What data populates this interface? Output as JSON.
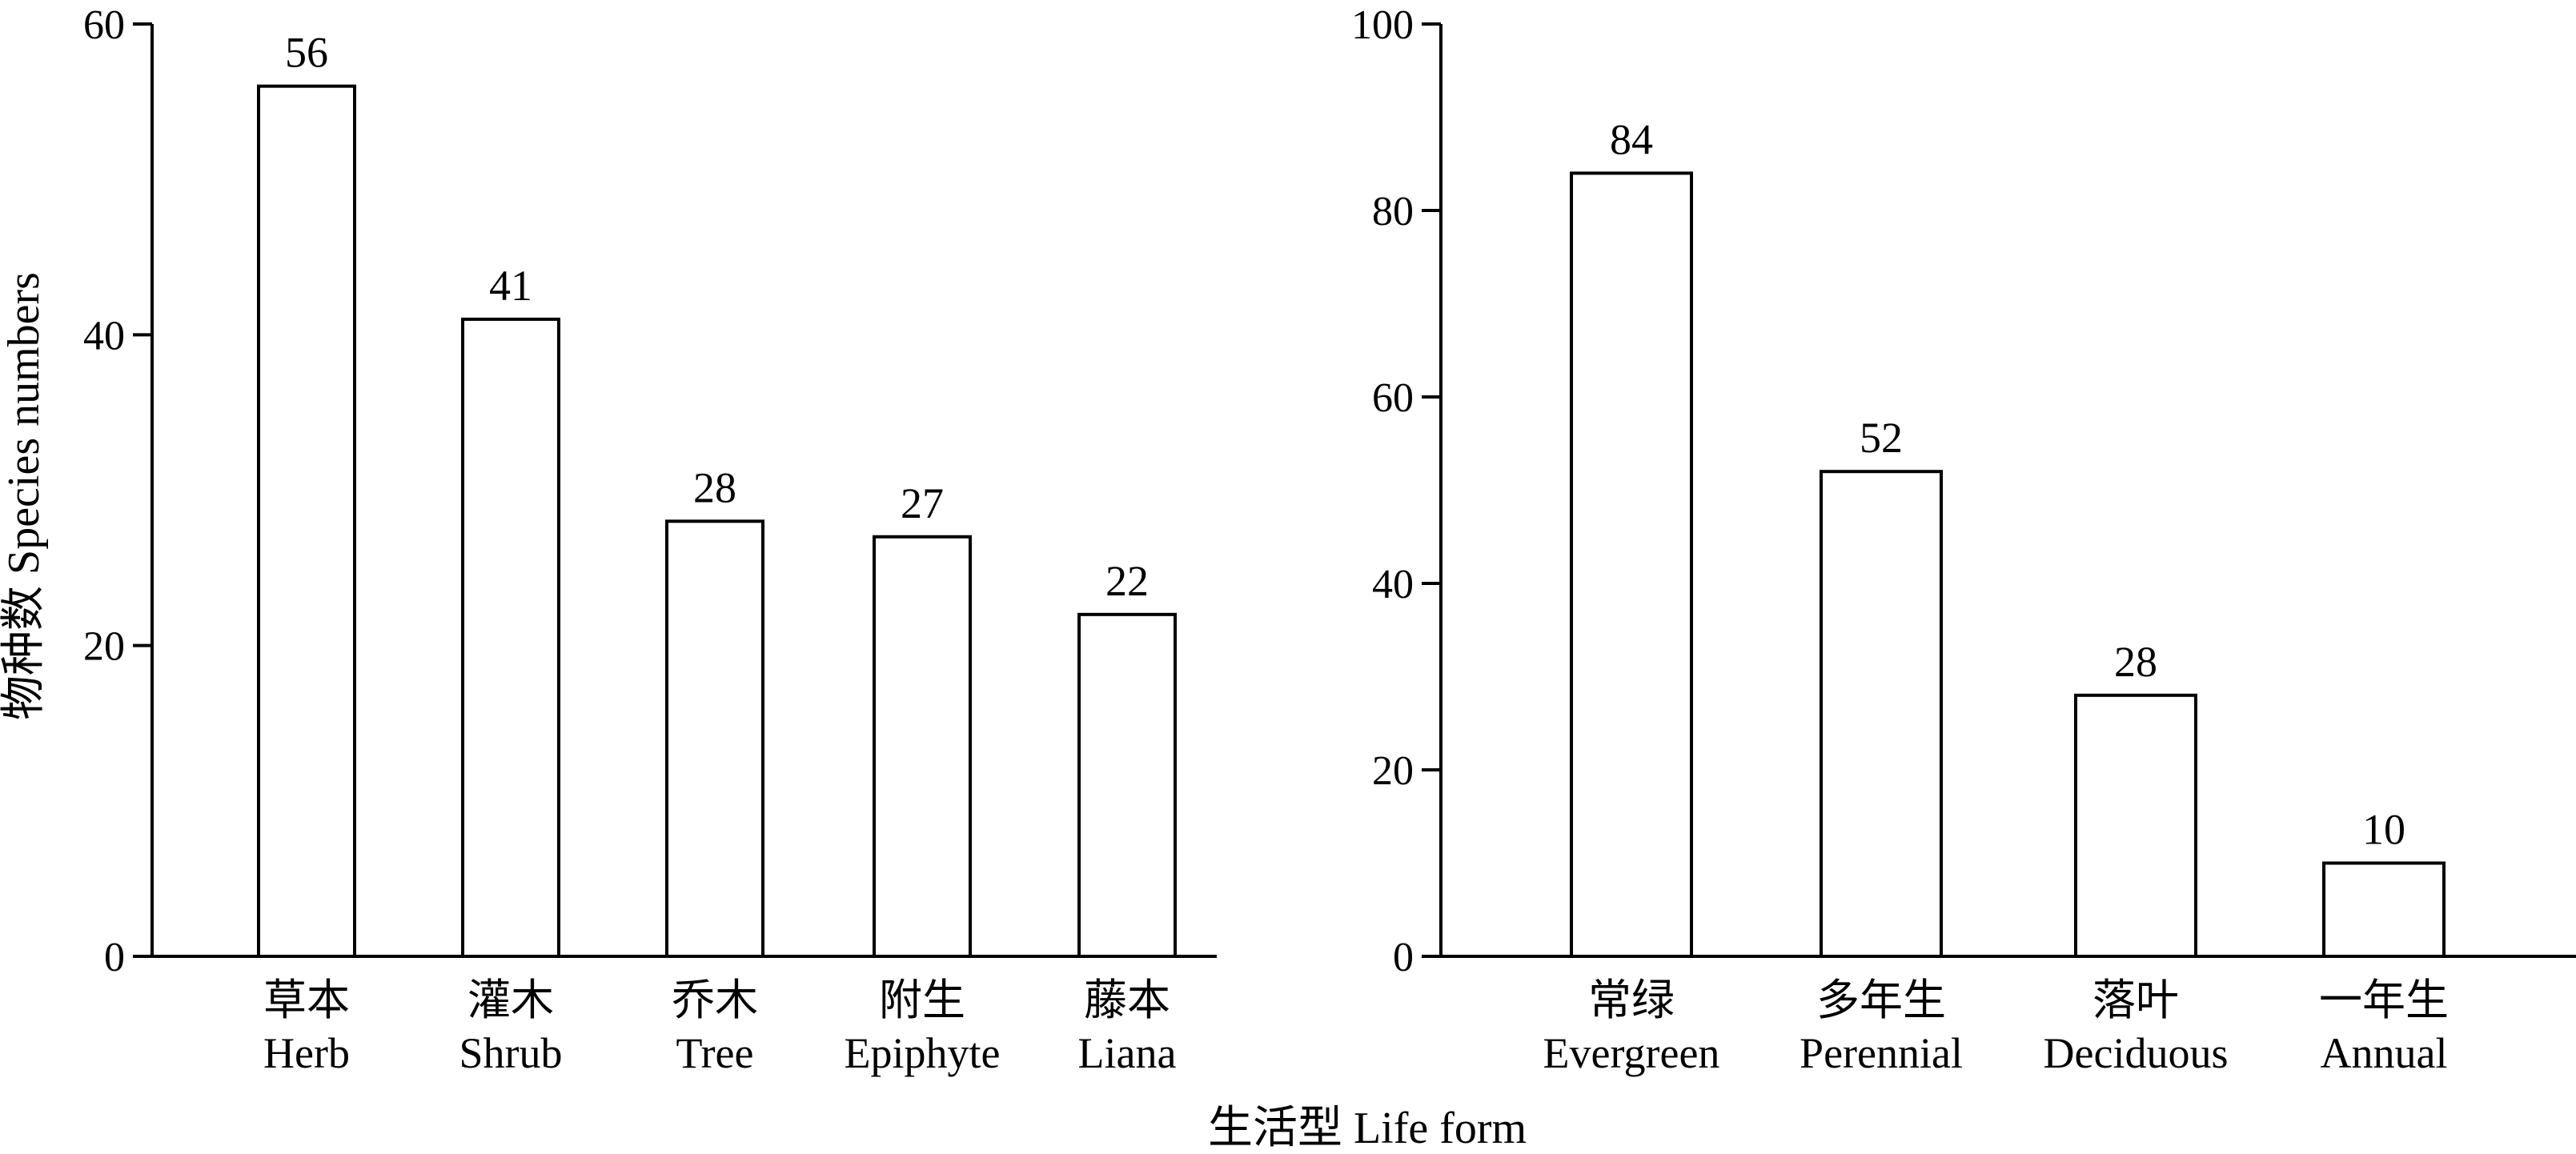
{
  "chart_data": [
    {
      "type": "bar",
      "categories": [
        "草本 Herb",
        "灌木 Shrub",
        "乔木 Tree",
        "附生 Epiphyte",
        "藤本 Liana"
      ],
      "category_lines": [
        [
          "草本",
          "Herb"
        ],
        [
          "灌木",
          "Shrub"
        ],
        [
          "乔木",
          "Tree"
        ],
        [
          "附生",
          "Epiphyte"
        ],
        [
          "藤本",
          "Liana"
        ]
      ],
      "values": [
        56,
        41,
        28,
        27,
        22
      ],
      "data_labels": [
        "56",
        "41",
        "28",
        "27",
        "22"
      ],
      "ylim": [
        0,
        60
      ],
      "yticks": [
        0,
        20,
        40,
        60
      ],
      "ylabel": "物种数 Species numbers",
      "grid": false,
      "bar_fill": "#ffffff",
      "bar_stroke": "#000000"
    },
    {
      "type": "bar",
      "categories": [
        "常绿 Evergreen",
        "多年生 Perennial",
        "落叶 Deciduous",
        "一年生 Annual"
      ],
      "category_lines": [
        [
          "常绿",
          "Evergreen"
        ],
        [
          "多年生",
          "Perennial"
        ],
        [
          "落叶",
          "Deciduous"
        ],
        [
          "一年生",
          "Annual"
        ]
      ],
      "values": [
        84,
        52,
        28,
        10
      ],
      "data_labels": [
        "84",
        "52",
        "28",
        "10"
      ],
      "ylim": [
        0,
        100
      ],
      "yticks": [
        0,
        20,
        40,
        60,
        80,
        100
      ],
      "grid": false,
      "bar_fill": "#ffffff",
      "bar_stroke": "#000000"
    }
  ],
  "shared_xlabel": "生活型 Life form"
}
